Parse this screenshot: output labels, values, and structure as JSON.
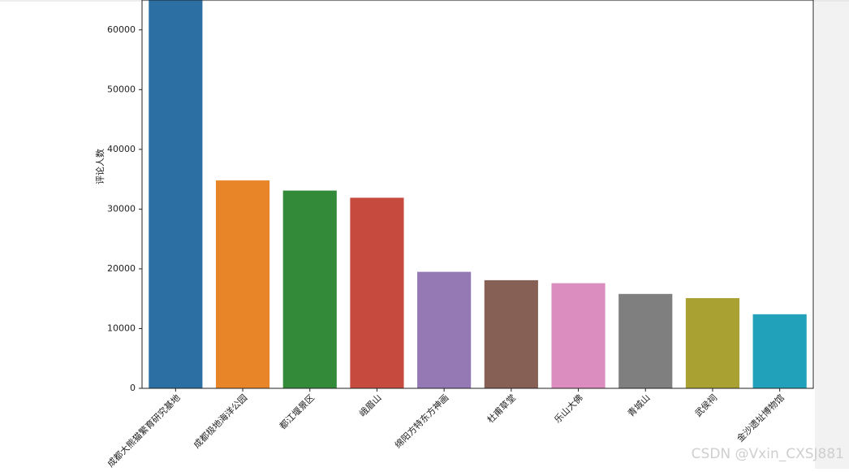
{
  "chart_data": {
    "type": "bar",
    "y_label": "评论人数",
    "categories": [
      "成都大熊猫繁育研究基地",
      "成都极地海洋公园",
      "都江堰景区",
      "峨眉山",
      "绵阳方特东方神画",
      "杜甫草堂",
      "乐山大佛",
      "青城山",
      "武侯祠",
      "金沙遗址博物馆"
    ],
    "values": [
      65000,
      34800,
      33100,
      31900,
      19500,
      18100,
      17600,
      15800,
      15100,
      12400
    ],
    "colors": [
      "#2b6fa3",
      "#e88528",
      "#338a38",
      "#c64a3e",
      "#9579b5",
      "#865f55",
      "#dc8dbf",
      "#7f7f7f",
      "#a9a232",
      "#22a1bb"
    ],
    "ylim": [
      0,
      65000
    ],
    "yticks": [
      0,
      10000,
      20000,
      30000,
      40000,
      50000,
      60000
    ],
    "watermark": "CSDN @Vxin_CXSJ881"
  }
}
